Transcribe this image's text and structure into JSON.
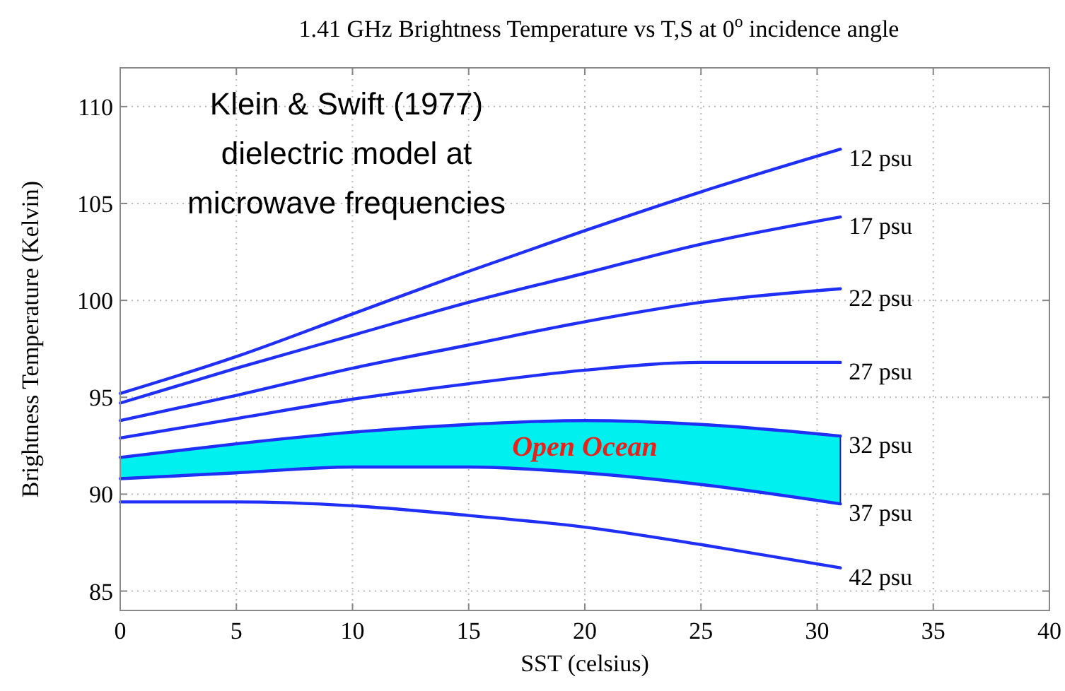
{
  "chart_data": {
    "type": "line",
    "title": "1.41 GHz Brightness Temperature vs T,S at 0$^{o}$ incidence angle",
    "xlabel": "SST (celsius)",
    "ylabel": "Brightness Temperature (Kelvin)",
    "x": [
      0,
      5,
      10,
      15,
      20,
      25,
      31
    ],
    "series": [
      {
        "name": "12 psu",
        "color": "#1f2ff5",
        "values": [
          95.2,
          97.1,
          99.3,
          101.5,
          103.6,
          105.6,
          107.8
        ]
      },
      {
        "name": "17 psu",
        "color": "#1f2ff5",
        "values": [
          94.7,
          96.5,
          98.2,
          99.9,
          101.4,
          102.9,
          104.3
        ]
      },
      {
        "name": "22 psu",
        "color": "#1f2ff5",
        "values": [
          93.8,
          95.1,
          96.5,
          97.7,
          98.9,
          99.9,
          100.6
        ]
      },
      {
        "name": "27 psu",
        "color": "#1f2ff5",
        "values": [
          92.9,
          93.9,
          94.9,
          95.7,
          96.4,
          96.8,
          96.8
        ]
      },
      {
        "name": "32 psu",
        "color": "#1f2ff5",
        "values": [
          91.9,
          92.6,
          93.2,
          93.6,
          93.8,
          93.6,
          93.0
        ],
        "lower": [
          90.8,
          91.1,
          91.4,
          91.4,
          91.1,
          90.5,
          89.5
        ],
        "upper": [
          91.9,
          92.6,
          93.2,
          93.6,
          93.8,
          93.6,
          93.0
        ]
      },
      {
        "name": "37 psu",
        "color": "#1f2ff5",
        "values": [
          90.8,
          91.1,
          91.4,
          91.4,
          91.1,
          90.5,
          89.5
        ]
      },
      {
        "name": "42 psu",
        "color": "#1f2ff5",
        "values": [
          89.6,
          89.6,
          89.4,
          88.9,
          88.3,
          87.4,
          86.2
        ]
      }
    ],
    "xlim": [
      0,
      40
    ],
    "xticks": [
      0,
      5,
      10,
      15,
      20,
      25,
      30,
      35,
      40
    ],
    "ylim": [
      84,
      112
    ],
    "yticks": [
      85,
      90,
      95,
      100,
      105,
      110
    ],
    "grid": true,
    "marker": "none",
    "line_style": "solid",
    "annotations": [
      "Klein & Swift (1977)\ndielectric model at\nmicrowave frequencies",
      "Open Ocean"
    ]
  }
}
